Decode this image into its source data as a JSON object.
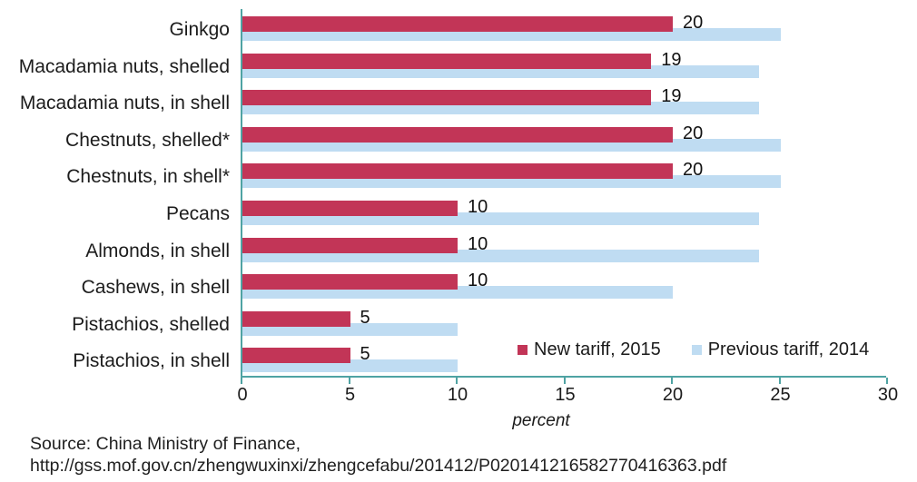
{
  "chart_data": {
    "type": "bar",
    "orientation": "horizontal",
    "title": "",
    "xlabel": "percent",
    "ylabel": "",
    "xlim": [
      0,
      30
    ],
    "xticks": [
      0,
      5,
      10,
      15,
      20,
      25,
      30
    ],
    "grid": false,
    "legend_position": "inside-bottom-right",
    "categories": [
      "Ginkgo",
      "Macadamia nuts, shelled",
      "Macadamia nuts, in shell",
      "Chestnuts, shelled*",
      "Chestnuts, in shell*",
      "Pecans",
      "Almonds, in shell",
      "Cashews, in shell",
      "Pistachios, shelled",
      "Pistachios, in shell"
    ],
    "series": [
      {
        "name": "New tariff, 2015",
        "color": "#c23557",
        "values": [
          20,
          19,
          19,
          20,
          20,
          10,
          10,
          10,
          5,
          5
        ],
        "data_labels": true
      },
      {
        "name": "Previous tariff, 2014",
        "color": "#bfdcf2",
        "values": [
          25,
          24,
          24,
          25,
          25,
          24,
          24,
          20,
          10,
          10
        ],
        "data_labels": false
      }
    ]
  },
  "legend": {
    "items": [
      {
        "label": "New tariff, 2015",
        "color": "#c23557"
      },
      {
        "label": "Previous tariff, 2014",
        "color": "#bfdcf2"
      }
    ]
  },
  "axis": {
    "tick_labels": [
      "0",
      "5",
      "10",
      "15",
      "20",
      "25",
      "30"
    ],
    "title": "percent"
  },
  "source": {
    "line1": "Source: China Ministry of Finance,",
    "line2": "http://gss.mof.gov.cn/zhengwuxinxi/zhengcefabu/201412/P020141216582770416363.pdf"
  },
  "colors": {
    "new_tariff": "#c23557",
    "previous_tariff": "#bfdcf2",
    "axis_line": "#4fa3a3",
    "text": "#1c1c1c",
    "background": "#ffffff"
  }
}
